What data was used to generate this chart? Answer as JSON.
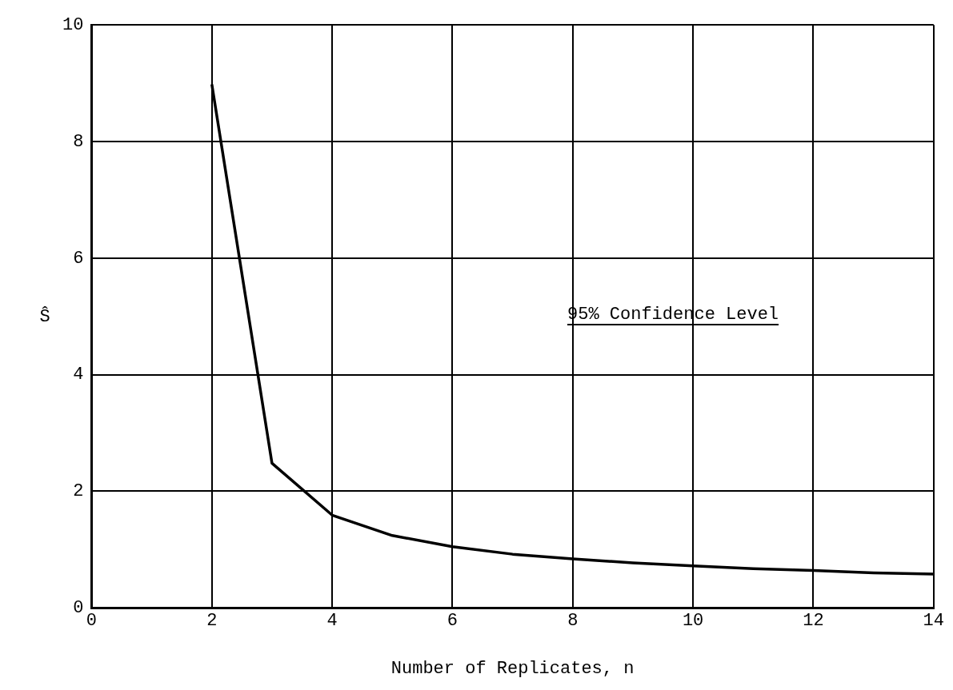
{
  "chart_data": {
    "type": "line",
    "xlabel": "Number of Replicates, n",
    "ylabel": "Ŝ",
    "annotations": [
      "95% Confidence Level"
    ],
    "series": [
      {
        "color": "#000000",
        "x": [
          2,
          3,
          4,
          5,
          6,
          7,
          8,
          9,
          10,
          11,
          12,
          13,
          14
        ],
        "values": [
          8.98,
          2.48,
          1.59,
          1.24,
          1.05,
          0.92,
          0.84,
          0.77,
          0.72,
          0.67,
          0.64,
          0.6,
          0.58
        ]
      }
    ],
    "xlim": [
      0,
      14
    ],
    "xticks": [
      0,
      2,
      4,
      6,
      8,
      10,
      12,
      14
    ],
    "ylim": [
      0,
      10
    ],
    "yticks": [
      0,
      2,
      4,
      6,
      8,
      10
    ],
    "grid": true,
    "legend": false,
    "marker": "none",
    "line_style": "solid"
  }
}
